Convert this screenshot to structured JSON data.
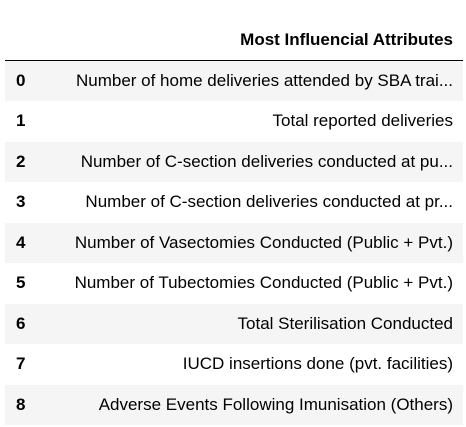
{
  "table": {
    "columns": [
      "",
      "Most Influencial Attributes"
    ],
    "rows": [
      {
        "index": "0",
        "value": "Number of home deliveries attended by SBA trai..."
      },
      {
        "index": "1",
        "value": "Total reported deliveries"
      },
      {
        "index": "2",
        "value": "Number of C-section deliveries conducted at pu..."
      },
      {
        "index": "3",
        "value": "Number of C-section deliveries conducted at pr..."
      },
      {
        "index": "4",
        "value": "Number of Vasectomies Conducted (Public + Pvt.)"
      },
      {
        "index": "5",
        "value": "Number of Tubectomies Conducted (Public + Pvt.)"
      },
      {
        "index": "6",
        "value": "Total Sterilisation Conducted"
      },
      {
        "index": "7",
        "value": "IUCD insertions done (pvt. facilities)"
      },
      {
        "index": "8",
        "value": "Adverse Events Following Imunisation (Others)"
      }
    ]
  }
}
